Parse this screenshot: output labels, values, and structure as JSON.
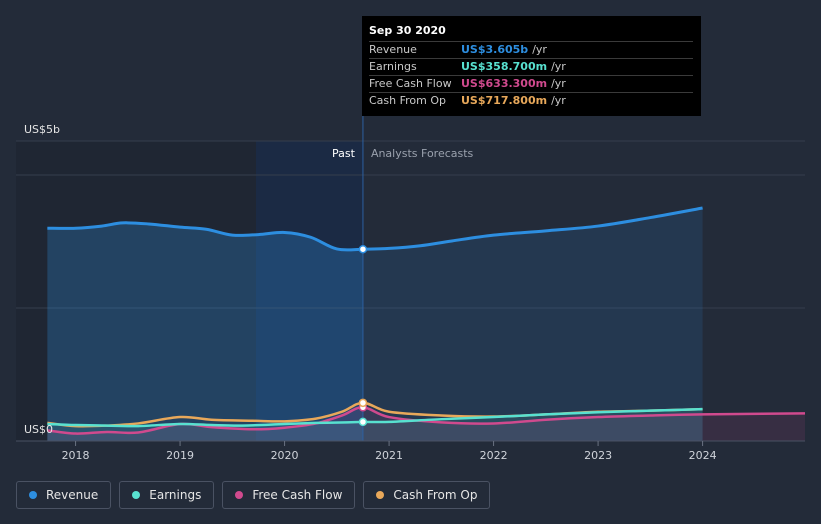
{
  "chart_data": {
    "type": "line",
    "y_axis": {
      "top_label": "US$5b",
      "bottom_label": "US$0",
      "ylim": [
        0,
        5
      ]
    },
    "x_axis": {
      "ticks": [
        "2018",
        "2019",
        "2020",
        "2021",
        "2022",
        "2023",
        "2024"
      ],
      "xlim": [
        2017.43,
        2024.98
      ]
    },
    "past_label": "Past",
    "forecast_label": "Analysts Forecasts",
    "past_end": 2020.75,
    "series": [
      {
        "name": "Revenue",
        "color": "#2d8ee0",
        "points": [
          [
            2017.73,
            4.0
          ],
          [
            2018.0,
            4.0
          ],
          [
            2018.25,
            4.04
          ],
          [
            2018.45,
            4.1
          ],
          [
            2018.7,
            4.08
          ],
          [
            2019.0,
            4.02
          ],
          [
            2019.25,
            3.98
          ],
          [
            2019.5,
            3.87
          ],
          [
            2019.75,
            3.88
          ],
          [
            2020.0,
            3.92
          ],
          [
            2020.25,
            3.83
          ],
          [
            2020.5,
            3.61
          ],
          [
            2020.75,
            3.605
          ],
          [
            2021.0,
            3.62
          ],
          [
            2021.3,
            3.67
          ],
          [
            2021.6,
            3.76
          ],
          [
            2022.0,
            3.87
          ],
          [
            2022.5,
            3.95
          ],
          [
            2023.0,
            4.04
          ],
          [
            2023.5,
            4.2
          ],
          [
            2024.0,
            4.38
          ]
        ]
      },
      {
        "name": "Earnings",
        "color": "#58e1d0",
        "points": [
          [
            2017.73,
            0.32
          ],
          [
            2018.0,
            0.3
          ],
          [
            2018.3,
            0.29
          ],
          [
            2018.6,
            0.28
          ],
          [
            2019.0,
            0.32
          ],
          [
            2019.3,
            0.3
          ],
          [
            2019.6,
            0.29
          ],
          [
            2020.0,
            0.32
          ],
          [
            2020.3,
            0.34
          ],
          [
            2020.6,
            0.35
          ],
          [
            2020.75,
            0.3587
          ],
          [
            2021.0,
            0.36
          ],
          [
            2021.5,
            0.41
          ],
          [
            2022.0,
            0.45
          ],
          [
            2022.5,
            0.5
          ],
          [
            2023.0,
            0.54
          ],
          [
            2023.5,
            0.57
          ],
          [
            2024.0,
            0.6
          ]
        ]
      },
      {
        "name": "Free Cash Flow",
        "color": "#d04a8e",
        "points": [
          [
            2017.73,
            0.2
          ],
          [
            2018.0,
            0.14
          ],
          [
            2018.3,
            0.17
          ],
          [
            2018.6,
            0.16
          ],
          [
            2019.0,
            0.32
          ],
          [
            2019.3,
            0.26
          ],
          [
            2019.7,
            0.22
          ],
          [
            2020.0,
            0.25
          ],
          [
            2020.3,
            0.33
          ],
          [
            2020.55,
            0.48
          ],
          [
            2020.75,
            0.6333
          ],
          [
            2021.0,
            0.45
          ],
          [
            2021.5,
            0.35
          ],
          [
            2022.0,
            0.33
          ],
          [
            2022.5,
            0.4
          ],
          [
            2023.0,
            0.45
          ],
          [
            2023.5,
            0.48
          ],
          [
            2024.0,
            0.5
          ],
          [
            2024.98,
            0.52
          ]
        ]
      },
      {
        "name": "Cash From Op",
        "color": "#e8a85a",
        "points": [
          [
            2017.73,
            0.34
          ],
          [
            2018.0,
            0.28
          ],
          [
            2018.3,
            0.29
          ],
          [
            2018.6,
            0.33
          ],
          [
            2019.0,
            0.45
          ],
          [
            2019.3,
            0.4
          ],
          [
            2019.7,
            0.38
          ],
          [
            2020.0,
            0.37
          ],
          [
            2020.3,
            0.42
          ],
          [
            2020.55,
            0.55
          ],
          [
            2020.75,
            0.7178
          ],
          [
            2021.0,
            0.55
          ],
          [
            2021.5,
            0.48
          ],
          [
            2022.0,
            0.46
          ],
          [
            2022.5,
            0.5
          ],
          [
            2023.0,
            0.55
          ],
          [
            2023.5,
            0.57
          ],
          [
            2024.0,
            0.6
          ]
        ]
      }
    ]
  },
  "tooltip": {
    "date": "Sep 30 2020",
    "rows": [
      {
        "label": "Revenue",
        "value": "US$3.605b",
        "unit": "/yr",
        "color": "#2d8ee0"
      },
      {
        "label": "Earnings",
        "value": "US$358.700m",
        "unit": "/yr",
        "color": "#58e1d0"
      },
      {
        "label": "Free Cash Flow",
        "value": "US$633.300m",
        "unit": "/yr",
        "color": "#d04a8e"
      },
      {
        "label": "Cash From Op",
        "value": "US$717.800m",
        "unit": "/yr",
        "color": "#e8a85a"
      }
    ]
  },
  "legend": [
    {
      "label": "Revenue",
      "color": "#2d8ee0"
    },
    {
      "label": "Earnings",
      "color": "#58e1d0"
    },
    {
      "label": "Free Cash Flow",
      "color": "#d04a8e"
    },
    {
      "label": "Cash From Op",
      "color": "#e8a85a"
    }
  ]
}
